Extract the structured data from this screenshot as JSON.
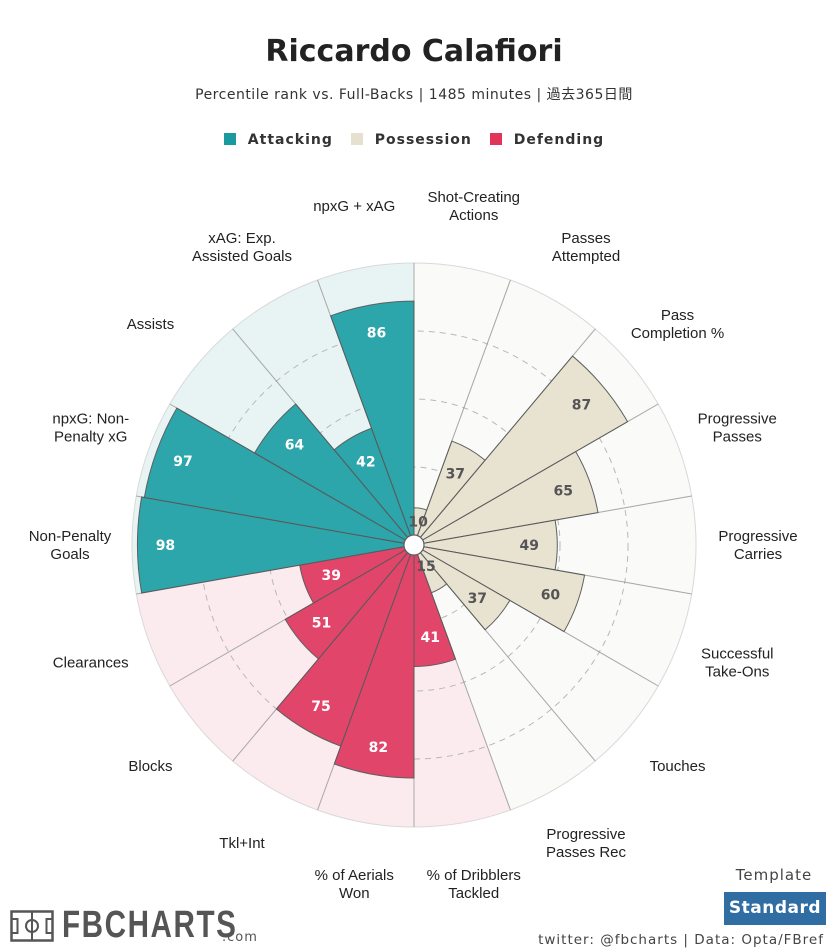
{
  "chart_data": {
    "type": "radar-bar",
    "title": "Riccardo Calafiori",
    "subtitle": "Percentile rank vs. Full-Backs | 1485 minutes | 過去365日間",
    "legend": [
      {
        "name": "Attacking",
        "color": "#1a9a9f"
      },
      {
        "name": "Possession",
        "color": "#e6e0cf"
      },
      {
        "name": "Defending",
        "color": "#e0345a"
      }
    ],
    "rlim": [
      0,
      100
    ],
    "metrics": [
      {
        "label": "Shot-Creating Actions",
        "value": 10,
        "group": "Possession"
      },
      {
        "label": "Passes Attempted",
        "value": 37,
        "group": "Possession"
      },
      {
        "label": "Pass Completion %",
        "value": 87,
        "group": "Possession"
      },
      {
        "label": "Progressive Passes",
        "value": 65,
        "group": "Possession"
      },
      {
        "label": "Progressive Carries",
        "value": 49,
        "group": "Possession"
      },
      {
        "label": "Successful Take-Ons",
        "value": 60,
        "group": "Possession"
      },
      {
        "label": "Touches",
        "value": 37,
        "group": "Possession"
      },
      {
        "label": "Progressive Passes Rec",
        "value": 15,
        "group": "Possession"
      },
      {
        "label": "% of Dribblers Tackled",
        "value": 41,
        "group": "Defending"
      },
      {
        "label": "% of Aerials Won",
        "value": 82,
        "group": "Defending"
      },
      {
        "label": "Tkl+Int",
        "value": 75,
        "group": "Defending"
      },
      {
        "label": "Blocks",
        "value": 51,
        "group": "Defending"
      },
      {
        "label": "Clearances",
        "value": 39,
        "group": "Defending"
      },
      {
        "label": "Non-Penalty Goals",
        "value": 98,
        "group": "Attacking"
      },
      {
        "label": "npxG: Non-Penalty xG",
        "value": 97,
        "group": "Attacking"
      },
      {
        "label": "Assists",
        "value": 64,
        "group": "Attacking"
      },
      {
        "label": "xAG: Exp. Assisted Goals",
        "value": 42,
        "group": "Attacking"
      },
      {
        "label": "npxG + xAG",
        "value": 86,
        "group": "Attacking"
      }
    ],
    "outer_labels": [
      [
        "Shot-Creating",
        "Actions"
      ],
      [
        "Passes",
        "Attempted"
      ],
      [
        "Pass",
        "Completion %"
      ],
      [
        "Progressive",
        "Passes"
      ],
      [
        "Progressive",
        "Carries"
      ],
      [
        "Successful",
        "Take-Ons"
      ],
      [
        "Touches"
      ],
      [
        "Progressive",
        "Passes Rec"
      ],
      [
        "% of Dribblers",
        "Tackled"
      ],
      [
        "% of Aerials",
        "Won"
      ],
      [
        "Tkl+Int"
      ],
      [
        "Blocks"
      ],
      [
        "Clearances"
      ],
      [
        "Non-Penalty",
        "Goals"
      ],
      [
        "npxG: Non-",
        "Penalty xG"
      ],
      [
        "Assists"
      ],
      [
        "xAG: Exp.",
        "Assisted Goals"
      ],
      [
        "npxG + xAG"
      ]
    ],
    "colors": {
      "Attacking": {
        "bar": "#2ca5ab",
        "bg": "#e8f4f4"
      },
      "Possession": {
        "bar": "#e8e2d1",
        "bg": "#fafaf8"
      },
      "Defending": {
        "bar": "#e2456a",
        "bg": "#fbebee"
      }
    }
  },
  "template": {
    "label": "Template",
    "button": "Standard"
  },
  "footer": {
    "credit": "twitter: @fbcharts | Data: Opta/FBref"
  },
  "logo": {
    "name": "FBCHARTS",
    "domain": ".com"
  }
}
